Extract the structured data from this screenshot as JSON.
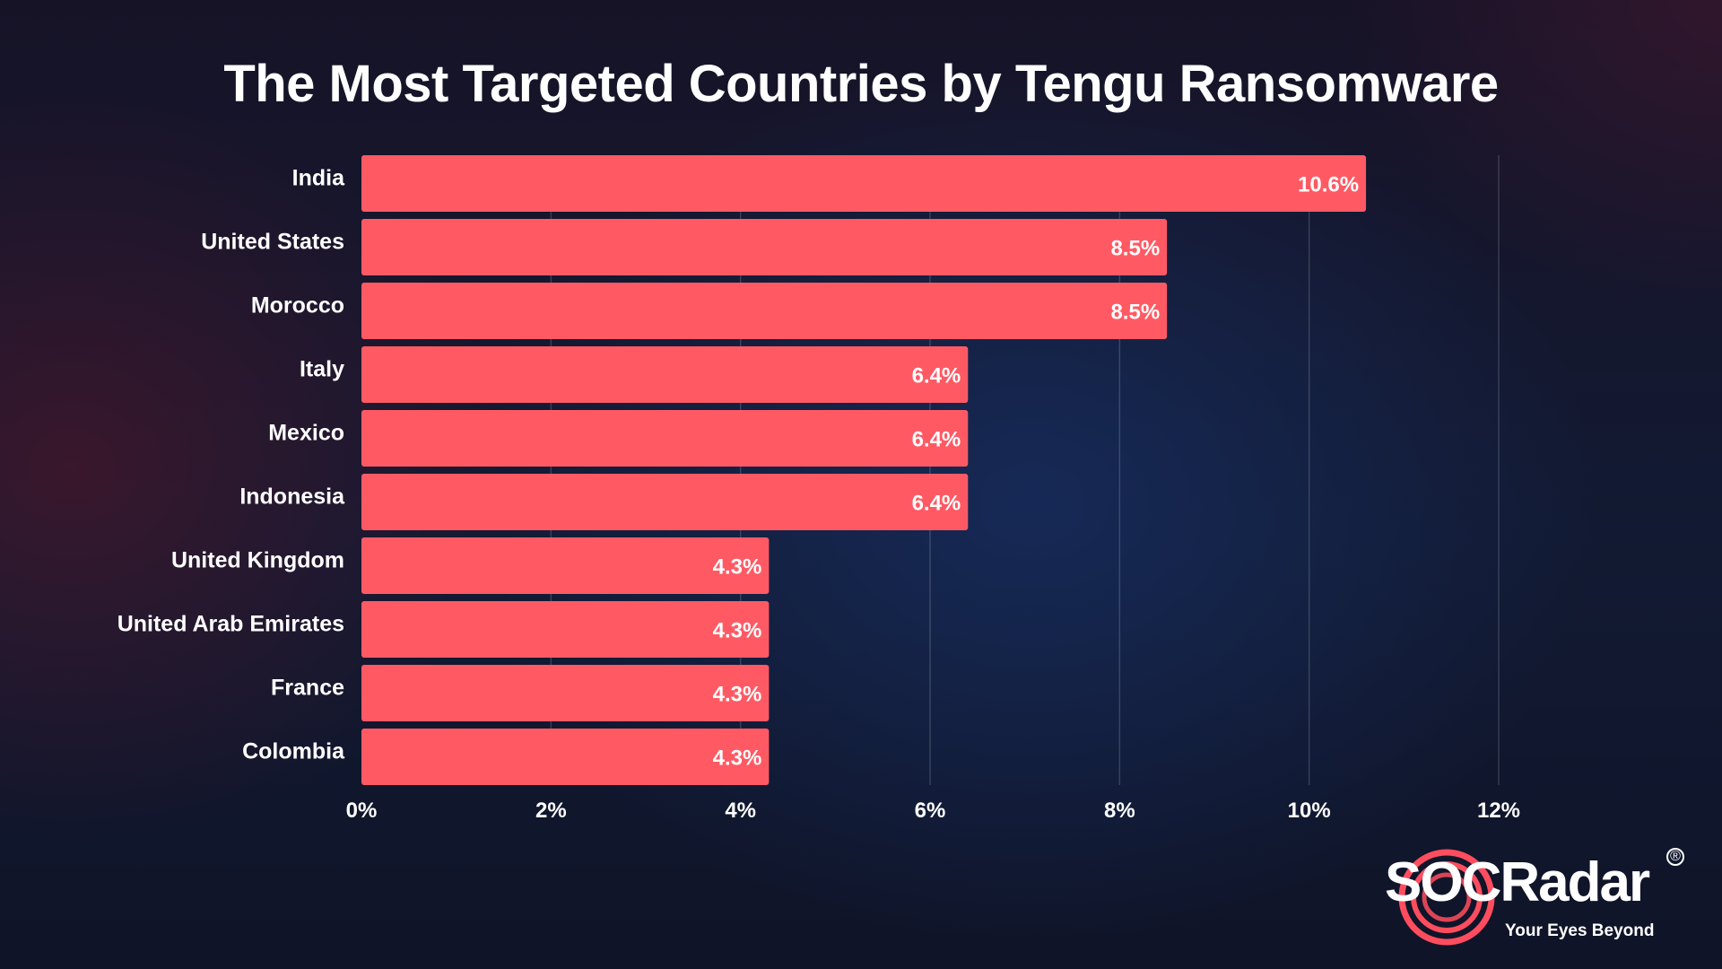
{
  "chart_data": {
    "type": "bar",
    "orientation": "horizontal",
    "title": "The Most Targeted Countries by Tengu Ransomware",
    "categories": [
      "India",
      "United States",
      "Morocco",
      "Italy",
      "Mexico",
      "Indonesia",
      "United Kingdom",
      "United Arab Emirates",
      "France",
      "Colombia"
    ],
    "values": [
      10.6,
      8.5,
      8.5,
      6.4,
      6.4,
      6.4,
      4.3,
      4.3,
      4.3,
      4.3
    ],
    "value_labels": [
      "10.6%",
      "8.5%",
      "8.5%",
      "6.4%",
      "6.4%",
      "6.4%",
      "4.3%",
      "4.3%",
      "4.3%",
      "4.3%"
    ],
    "xlim": [
      0,
      12
    ],
    "xticks": [
      0,
      2,
      4,
      6,
      8,
      10,
      12
    ],
    "xtick_labels": [
      "0%",
      "2%",
      "4%",
      "6%",
      "8%",
      "10%",
      "12%"
    ],
    "xlabel": "",
    "ylabel": "",
    "grid": "vertical",
    "bar_color": "#ff5a64"
  },
  "branding": {
    "logo_text": "SOCRadar",
    "registered_mark": "®",
    "tagline": "Your Eyes Beyond",
    "logo_accent_color": "#ff4d5e"
  }
}
